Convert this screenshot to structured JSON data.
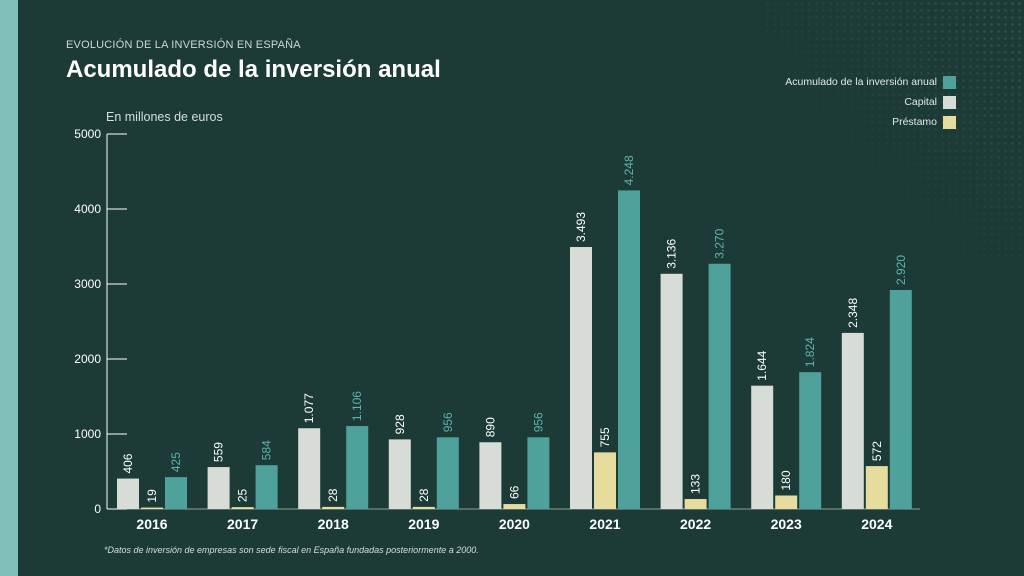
{
  "header": {
    "kicker": "EVOLUCIÓN DE LA INVERSIÓN EN ESPAÑA",
    "title": "Acumulado de la inversión anual"
  },
  "unit_label": "En millones de euros",
  "footnote": "*Datos de inversión de empresas son sede fiscal en España fundadas posteriormente a 2000.",
  "colors": {
    "background": "#1c3b36",
    "accent_bar": "#7fc0bb",
    "capital": "#d7ddd6",
    "prestamo": "#e6dc9d",
    "acumulado": "#4fa29c"
  },
  "legend": [
    {
      "label": "Acumulado de la inversión anual",
      "color": "#4fa29c"
    },
    {
      "label": "Capital",
      "color": "#d7ddd6"
    },
    {
      "label": "Préstamo",
      "color": "#e6dc9d"
    }
  ],
  "chart_data": {
    "type": "bar",
    "title": "Acumulado de la inversión anual",
    "ylabel": "En millones de euros",
    "ylim": [
      0,
      5000
    ],
    "yticks": [
      0,
      1000,
      2000,
      3000,
      4000,
      5000
    ],
    "categories": [
      "2016",
      "2017",
      "2018",
      "2019",
      "2020",
      "2021",
      "2022",
      "2023",
      "2024"
    ],
    "series": [
      {
        "name": "Capital",
        "color": "#d7ddd6",
        "values": [
          406,
          559,
          1077,
          928,
          890,
          3493,
          3136,
          1644,
          2348
        ],
        "labels": [
          "406",
          "559",
          "1.077",
          "928",
          "890",
          "3.493",
          "3.136",
          "1.644",
          "2.348"
        ]
      },
      {
        "name": "Préstamo",
        "color": "#e6dc9d",
        "values": [
          19,
          25,
          28,
          28,
          66,
          755,
          133,
          180,
          572
        ],
        "labels": [
          "19",
          "25",
          "28",
          "28",
          "66",
          "755",
          "133",
          "180",
          "572"
        ]
      },
      {
        "name": "Acumulado de la inversión anual",
        "color": "#4fa29c",
        "values": [
          425,
          584,
          1106,
          956,
          956,
          4248,
          3270,
          1824,
          2920
        ],
        "labels": [
          "425",
          "584",
          "1.106",
          "956",
          "956",
          "4.248",
          "3.270",
          "1.824",
          "2.920"
        ]
      }
    ],
    "legend_position": "top-right",
    "grid": false
  }
}
